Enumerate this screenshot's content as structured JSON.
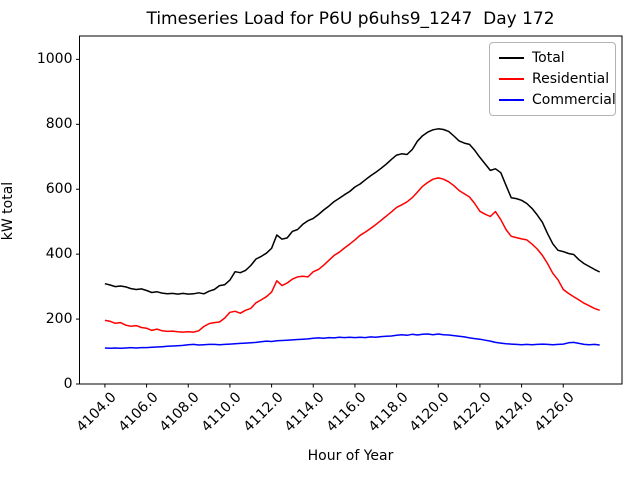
{
  "window": {
    "background": "#ffffff"
  },
  "chart_data": {
    "type": "line",
    "title": "Timeseries Load for P6U p6uhs9_1247  Day 172",
    "xlabel": "Hour of Year",
    "ylabel": "kW total",
    "xlim": [
      4102.78,
      4128.82
    ],
    "ylim": [
      0,
      1072
    ],
    "xticks": [
      4104.0,
      4106.0,
      4108.0,
      4110.0,
      4112.0,
      4114.0,
      4116.0,
      4118.0,
      4120.0,
      4122.0,
      4124.0,
      4126.0
    ],
    "xtick_labels": [
      "4104.0",
      "4106.0",
      "4108.0",
      "4110.0",
      "4112.0",
      "4114.0",
      "4116.0",
      "4118.0",
      "4120.0",
      "4122.0",
      "4124.0",
      "4126.0"
    ],
    "yticks": [
      0,
      200,
      400,
      600,
      800,
      1000
    ],
    "ytick_labels": [
      "0",
      "200",
      "400",
      "600",
      "800",
      "1000"
    ],
    "grid": false,
    "legend_position": "upper-right",
    "x_start": 4104.0,
    "x_step": 0.25,
    "series": [
      {
        "name": "Total",
        "color": "#000000",
        "values": [
          309,
          305,
          300,
          302,
          299,
          294,
          291,
          293,
          288,
          282,
          284,
          280,
          278,
          279,
          277,
          279,
          277,
          278,
          281,
          278,
          286,
          291,
          303,
          306,
          320,
          346,
          343,
          350,
          365,
          385,
          393,
          403,
          418,
          459,
          446,
          450,
          470,
          476,
          492,
          503,
          510,
          522,
          536,
          548,
          562,
          572,
          583,
          593,
          607,
          616,
          629,
          641,
          652,
          664,
          677,
          692,
          705,
          709,
          707,
          722,
          748,
          765,
          776,
          783,
          786,
          784,
          778,
          764,
          749,
          742,
          738,
          720,
          698,
          678,
          658,
          663,
          651,
          612,
          574,
          571,
          566,
          556,
          541,
          521,
          498,
          463,
          432,
          412,
          408,
          402,
          399,
          383,
          371,
          362,
          353,
          345
        ]
      },
      {
        "name": "Residential",
        "color": "#ff0000",
        "values": [
          196,
          193,
          187,
          189,
          181,
          178,
          180,
          174,
          172,
          165,
          169,
          164,
          162,
          163,
          161,
          160,
          161,
          160,
          164,
          177,
          186,
          189,
          191,
          203,
          221,
          224,
          218,
          227,
          233,
          250,
          259,
          269,
          283,
          318,
          303,
          311,
          323,
          330,
          332,
          330,
          346,
          353,
          366,
          381,
          396,
          406,
          419,
          431,
          444,
          458,
          468,
          479,
          491,
          504,
          517,
          530,
          544,
          552,
          561,
          574,
          591,
          609,
          621,
          631,
          635,
          631,
          623,
          611,
          596,
          586,
          576,
          556,
          532,
          523,
          516,
          531,
          506,
          476,
          455,
          451,
          447,
          444,
          431,
          416,
          396,
          371,
          341,
          321,
          291,
          279,
          269,
          259,
          249,
          241,
          233,
          227
        ]
      },
      {
        "name": "Commercial",
        "color": "#0000ff",
        "values": [
          111,
          110,
          111,
          110,
          111,
          112,
          111,
          112,
          112,
          113,
          114,
          115,
          116,
          117,
          118,
          119,
          121,
          122,
          120,
          121,
          122,
          122,
          121,
          122,
          123,
          124,
          125,
          126,
          127,
          128,
          130,
          132,
          131,
          133,
          134,
          135,
          136,
          137,
          138,
          139,
          141,
          142,
          141,
          143,
          142,
          144,
          143,
          144,
          143,
          144,
          143,
          145,
          144,
          146,
          147,
          148,
          150,
          152,
          150,
          153,
          151,
          153,
          154,
          152,
          154,
          152,
          151,
          149,
          147,
          145,
          142,
          140,
          138,
          135,
          132,
          128,
          126,
          124,
          123,
          122,
          121,
          122,
          121,
          122,
          123,
          122,
          121,
          122,
          123,
          127,
          128,
          125,
          122,
          121,
          122,
          120
        ]
      }
    ]
  }
}
